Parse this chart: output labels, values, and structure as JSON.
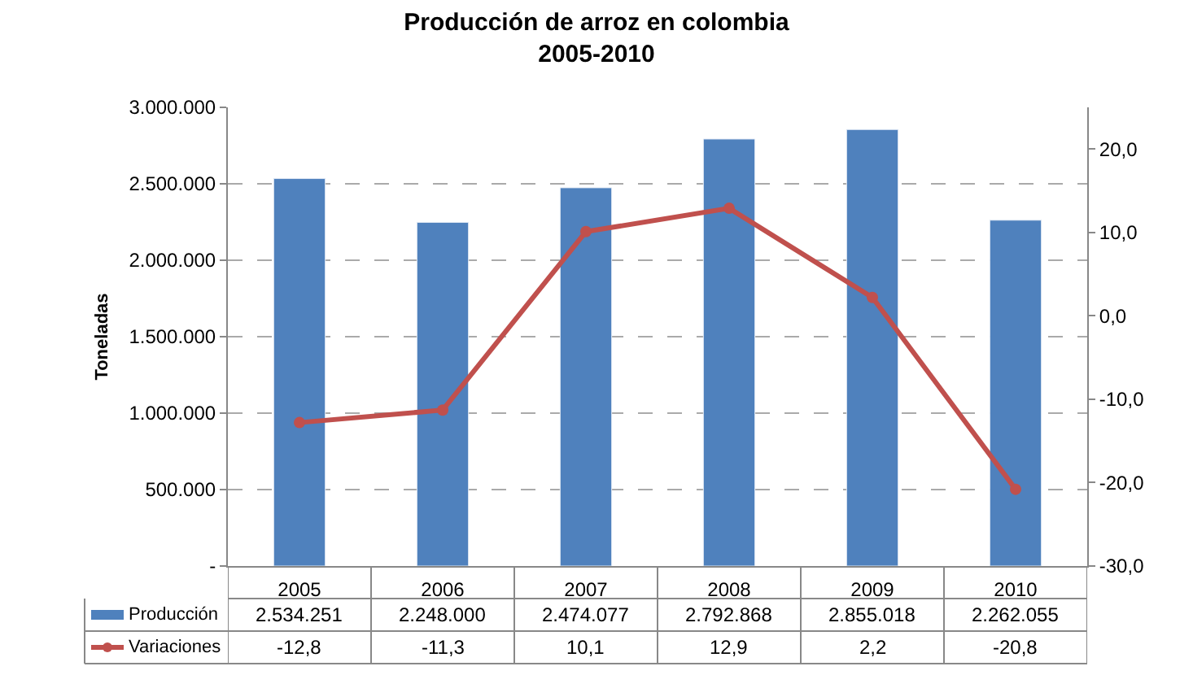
{
  "chart_data": {
    "type": "bar",
    "title": "Producción de arroz en colombia\n2005-2010",
    "ylabel": "Toneladas",
    "categories": [
      "2005",
      "2006",
      "2007",
      "2008",
      "2009",
      "2010"
    ],
    "series": [
      {
        "name": "Producción",
        "color": "#4f81bd",
        "values": [
          2534251,
          2248000,
          2474077,
          2792868,
          2855018,
          2262055
        ],
        "value_labels": [
          "2.534.251",
          "2.248.000",
          "2.474.077",
          "2.792.868",
          "2.855.018",
          "2.262.055"
        ]
      },
      {
        "name": "Variaciones",
        "type": "line",
        "axis": "y2",
        "color": "#c0504d",
        "marker": "circle",
        "values": [
          -12.8,
          -11.3,
          10.1,
          12.9,
          2.2,
          -20.8
        ],
        "value_labels": [
          "-12,8",
          "-11,3",
          "10,1",
          "12,9",
          "2,2",
          "-20,8"
        ]
      }
    ],
    "ylim": [
      0,
      3000000
    ],
    "yticks": [
      {
        "value": 0,
        "label": "-"
      },
      {
        "value": 500000,
        "label": "500.000"
      },
      {
        "value": 1000000,
        "label": "1.000.000"
      },
      {
        "value": 1500000,
        "label": "1.500.000"
      },
      {
        "value": 2000000,
        "label": "2.000.000"
      },
      {
        "value": 2500000,
        "label": "2.500.000"
      },
      {
        "value": 3000000,
        "label": "3.000.000"
      }
    ],
    "y2lim": [
      -30,
      25
    ],
    "y2ticks": [
      {
        "value": -30,
        "label": "-30,0"
      },
      {
        "value": -20,
        "label": "-20,0"
      },
      {
        "value": -10,
        "label": "-10,0"
      },
      {
        "value": 0,
        "label": "0,0"
      },
      {
        "value": 10,
        "label": "10,0"
      },
      {
        "value": 20,
        "label": "20,0"
      }
    ],
    "grid": "y",
    "legend": "bottom left",
    "data_labels": true
  }
}
